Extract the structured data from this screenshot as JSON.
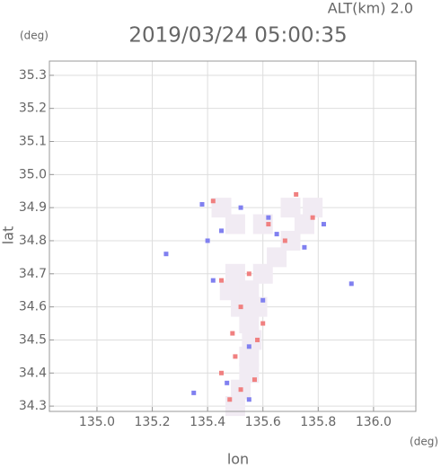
{
  "chart_data": {
    "type": "scatter",
    "title": "2019/03/24 05:00:35",
    "subtitle": "ALT(km) 2.0",
    "y_unit": "(deg)",
    "x_unit": "(deg)",
    "x_label": "lon",
    "y_label": "lat",
    "xlim": [
      134.828,
      136.153
    ],
    "ylim": [
      34.284,
      35.343
    ],
    "xticks": [
      {
        "value": 135,
        "label": "135.0"
      },
      135.2,
      135.4,
      135.6,
      135.8,
      {
        "value": 136,
        "label": "136.0"
      }
    ],
    "yticks": [
      34.3,
      34.4,
      34.5,
      34.6,
      34.7,
      34.8,
      34.9,
      {
        "value": 35,
        "label": "35.0"
      },
      35.1,
      35.2,
      35.3
    ],
    "grid": true,
    "series": [
      {
        "color": "#f1ebf3",
        "x": [
          135.5,
          135.52,
          135.55,
          135.55,
          135.56,
          135.55,
          135.52,
          135.55,
          135.5,
          135.6,
          135.65,
          135.7,
          135.75,
          135.78,
          135.6,
          135.7,
          135.5,
          135.45,
          135.48,
          135.58
        ],
        "y": [
          34.3,
          34.35,
          34.4,
          34.45,
          34.5,
          34.55,
          34.6,
          34.65,
          34.7,
          34.7,
          34.75,
          34.8,
          34.85,
          34.9,
          34.85,
          34.9,
          34.85,
          34.9,
          34.65,
          34.6
        ]
      },
      {
        "color": "#f08080",
        "x": [
          135.42,
          135.62,
          135.68,
          135.45,
          135.55,
          135.52,
          135.58,
          135.5,
          135.45,
          135.48,
          135.52,
          135.57,
          135.78,
          135.72,
          135.6,
          135.49
        ],
        "y": [
          34.92,
          34.85,
          34.8,
          34.68,
          34.7,
          34.6,
          34.5,
          34.45,
          34.4,
          34.32,
          34.35,
          34.38,
          34.87,
          34.94,
          34.55,
          34.52
        ]
      },
      {
        "color": "#8080f0",
        "x": [
          135.38,
          135.45,
          135.52,
          135.65,
          135.75,
          135.82,
          135.25,
          135.92,
          135.42,
          135.6,
          135.55,
          135.47,
          135.35,
          135.55,
          135.62,
          135.4
        ],
        "y": [
          34.91,
          34.83,
          34.9,
          34.82,
          34.78,
          34.85,
          34.76,
          34.67,
          34.68,
          34.62,
          34.48,
          34.37,
          34.34,
          34.32,
          34.87,
          34.8
        ]
      }
    ]
  }
}
